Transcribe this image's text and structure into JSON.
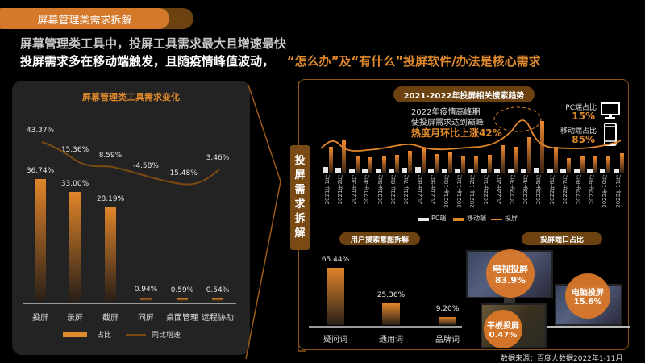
{
  "header": {
    "section_title": "屏幕管理类需求拆解",
    "headline_1": "屏幕管理类工具中，投屏工具需求最大且增速最快",
    "headline_2_plain": "投屏需求多在移动端触发，且随疫情峰值波动，",
    "headline_2_highlight": "“怎么办”及“有什么”投屏软件/办法是核心需求"
  },
  "left_panel": {
    "title": "屏幕管理类工具需求变化",
    "legend": {
      "bar": "占比",
      "line": "同比增速"
    }
  },
  "side_tab": {
    "chars": [
      "投",
      "屏",
      "需",
      "求",
      "拆",
      "解"
    ]
  },
  "trend_panel": {
    "title": "2021-2022年投屏相关搜索趋势",
    "annotation_line1": "2022年疫情高峰期",
    "annotation_line2": "使投屏需求达到巅峰",
    "annotation_strong": "热度月环比上涨42%",
    "pc_label": "PC端占比",
    "pc_value": "15%",
    "mobile_label": "移动端占比",
    "mobile_value": "85%",
    "legend": {
      "pc": "PC端",
      "mobile": "移动端",
      "line": "投屏"
    }
  },
  "intent_panel": {
    "title": "用户搜索意图拆解"
  },
  "device_panel": {
    "title": "投屏端口占比",
    "tv": {
      "label": "电视投屏",
      "value": "83.9%"
    },
    "pc": {
      "label": "电脑投屏",
      "value": "15.6%"
    },
    "tablet": {
      "label": "平板投屏",
      "value": "0.47%"
    }
  },
  "source": "数据来源：百度大数据2022年1-11月",
  "colors": {
    "accent": "#e08a2c",
    "dark_accent": "#6b4210",
    "card_bg": "#232323"
  },
  "chart_data": [
    {
      "type": "bar",
      "title": "屏幕管理类工具需求变化",
      "categories": [
        "投屏",
        "录屏",
        "截屏",
        "同屏",
        "桌面管理",
        "远程协助"
      ],
      "series": [
        {
          "name": "占比",
          "type": "bar",
          "values": [
            36.74,
            33.0,
            28.19,
            0.94,
            0.59,
            0.54
          ],
          "labels": [
            "36.74%",
            "33.00%",
            "28.19%",
            "0.94%",
            "0.59%",
            "0.54%"
          ]
        },
        {
          "name": "同比增速",
          "type": "line",
          "values": [
            43.37,
            15.36,
            8.59,
            -4.58,
            -15.48,
            3.46
          ],
          "labels": [
            "43.37%",
            "15.36%",
            "8.59%",
            "-4.58%",
            "-15.48%",
            "3.46%"
          ]
        }
      ],
      "legend_position": "bottom"
    },
    {
      "type": "bar",
      "title": "2021-2022年投屏相关搜索趋势",
      "categories": [
        "2021年1月",
        "2021年2月",
        "2021年3月",
        "2021年4月",
        "2021年5月",
        "2021年6月",
        "2021年7月",
        "2021年8月",
        "2021年9月",
        "2021年10月",
        "2021年11月",
        "2021年12月",
        "2022年1月",
        "2022年2月",
        "2022年3月",
        "2022年4月",
        "2022年5月",
        "2022年6月",
        "2022年7月",
        "2022年8月",
        "2022年9月",
        "2022年10月",
        "2022年11月"
      ],
      "series": [
        {
          "name": "PC端",
          "type": "bar",
          "values": [
            7,
            6,
            5,
            4,
            5,
            5,
            6,
            7,
            5,
            5,
            4,
            4,
            5,
            5,
            5,
            5,
            6,
            5,
            4,
            4,
            4,
            4,
            5
          ]
        },
        {
          "name": "移动端",
          "type": "bar",
          "values": [
            32,
            40,
            21,
            19,
            20,
            22,
            27,
            30,
            23,
            25,
            21,
            21,
            22,
            34,
            32,
            44,
            64,
            32,
            18,
            20,
            20,
            20,
            24
          ]
        },
        {
          "name": "投屏",
          "type": "line",
          "values": [
            39,
            46,
            26,
            23,
            25,
            27,
            33,
            37,
            28,
            30,
            25,
            25,
            27,
            39,
            37,
            49,
            70,
            37,
            22,
            24,
            24,
            24,
            29
          ]
        }
      ],
      "legend_position": "bottom",
      "annotations": [
        "2022年疫情高峰期 使投屏需求达到巅峰 热度月环比上涨42%",
        "PC端占比 15%",
        "移动端占比 85%"
      ]
    },
    {
      "type": "bar",
      "title": "用户搜索意图拆解",
      "categories": [
        "疑问词",
        "通用词",
        "品牌词"
      ],
      "values": [
        65.44,
        25.36,
        9.2
      ],
      "labels": [
        "65.44%",
        "25.36%",
        "9.20%"
      ]
    },
    {
      "type": "pie",
      "title": "投屏端口占比",
      "categories": [
        "电视投屏",
        "电脑投屏",
        "平板投屏"
      ],
      "values": [
        83.9,
        15.6,
        0.47
      ]
    }
  ]
}
